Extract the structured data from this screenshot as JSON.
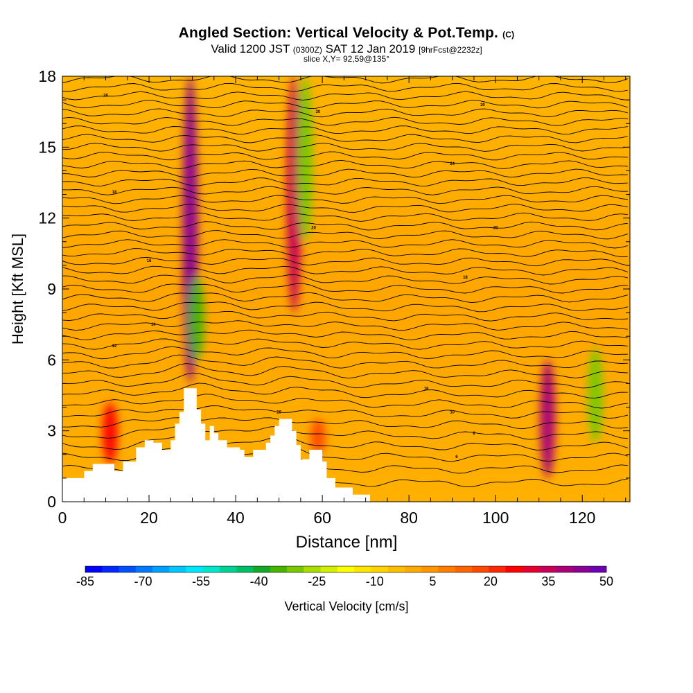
{
  "header": {
    "title_main": "Angled Section: Vertical Velocity & Pot.Temp.",
    "title_unit": "(C)",
    "valid_prefix": "Valid 1200 JST",
    "valid_utc": "(0300Z)",
    "valid_date": "SAT 12 Jan 2019",
    "valid_fcst": "[9hrFcst@2232z]",
    "slice_info": "slice X,Y= 92,59@135°"
  },
  "chart_data": {
    "type": "heatmap",
    "xlabel": "Distance [nm]",
    "ylabel": "Height [Kft MSL]",
    "xlim": [
      0,
      131
    ],
    "ylim": [
      0,
      18
    ],
    "x_ticks": [
      0,
      20,
      40,
      60,
      80,
      100,
      120
    ],
    "y_ticks": [
      0,
      3,
      6,
      9,
      12,
      15,
      18
    ],
    "colorbar": {
      "label": "Vertical Velocity [cm/s]",
      "tick_labels": [
        "-85",
        "-70",
        "-55",
        "-40",
        "-25",
        "-10",
        "5",
        "20",
        "35",
        "50"
      ],
      "colors": [
        "#0000ff",
        "#0028ff",
        "#0050ff",
        "#0078ff",
        "#00a0ff",
        "#00c8ff",
        "#00e6ff",
        "#00e6c8",
        "#00d296",
        "#00be64",
        "#14aa28",
        "#46b400",
        "#78c800",
        "#aade00",
        "#d2f000",
        "#ffff00",
        "#ffe600",
        "#ffd200",
        "#ffbe00",
        "#ffaa00",
        "#ff9600",
        "#ff7d00",
        "#ff6400",
        "#ff4b00",
        "#ff2800",
        "#ff0000",
        "#e6002d",
        "#c8005a",
        "#aa0078",
        "#8c0096",
        "#6e00b4"
      ]
    },
    "velocity_features": [
      {
        "x": 11,
        "z_min": 1.6,
        "z_max": 4.2,
        "vv": 28
      },
      {
        "x": 29.5,
        "z_min": 5,
        "z_max": 18,
        "vv": 45
      },
      {
        "x": 31,
        "z_min": 6,
        "z_max": 9.5,
        "vv": -35
      },
      {
        "x": 53.5,
        "z_min": 8,
        "z_max": 18,
        "vv": 35
      },
      {
        "x": 56,
        "z_min": 11,
        "z_max": 18,
        "vv": -30
      },
      {
        "x": 59,
        "z_min": 2,
        "z_max": 3.5,
        "vv": 18
      },
      {
        "x": 112,
        "z_min": 1,
        "z_max": 6,
        "vv": 40
      },
      {
        "x": 123,
        "z_min": 2.5,
        "z_max": 6.5,
        "vv": -30
      }
    ],
    "terrain": [
      [
        0,
        1
      ],
      [
        5,
        1
      ],
      [
        5,
        1.3
      ],
      [
        7,
        1.3
      ],
      [
        7,
        1.6
      ],
      [
        12,
        1.6
      ],
      [
        12,
        1.3
      ],
      [
        14,
        1.3
      ],
      [
        14,
        1.7
      ],
      [
        17,
        1.7
      ],
      [
        17,
        2.3
      ],
      [
        19,
        2.3
      ],
      [
        19,
        2.6
      ],
      [
        21,
        2.6
      ],
      [
        21,
        2.5
      ],
      [
        23,
        2.5
      ],
      [
        23,
        2.2
      ],
      [
        25,
        2.2
      ],
      [
        25,
        2.6
      ],
      [
        26,
        2.6
      ],
      [
        26,
        3.3
      ],
      [
        27,
        3.3
      ],
      [
        27,
        3.8
      ],
      [
        28,
        3.8
      ],
      [
        28,
        4.8
      ],
      [
        31,
        4.8
      ],
      [
        31,
        3.9
      ],
      [
        32,
        3.9
      ],
      [
        32,
        3.3
      ],
      [
        33,
        3.3
      ],
      [
        33,
        2.6
      ],
      [
        34,
        2.6
      ],
      [
        34,
        3.2
      ],
      [
        35,
        3.2
      ],
      [
        35,
        2.9
      ],
      [
        36,
        2.9
      ],
      [
        36,
        2.6
      ],
      [
        38,
        2.6
      ],
      [
        38,
        2.3
      ],
      [
        41,
        2.3
      ],
      [
        41,
        2.2
      ],
      [
        42,
        2.2
      ],
      [
        42,
        1.9
      ],
      [
        44,
        1.9
      ],
      [
        44,
        2.2
      ],
      [
        47,
        2.2
      ],
      [
        47,
        2.5
      ],
      [
        48,
        2.5
      ],
      [
        48,
        2.8
      ],
      [
        49,
        2.8
      ],
      [
        49,
        3.2
      ],
      [
        50,
        3.2
      ],
      [
        50,
        3.5
      ],
      [
        53,
        3.5
      ],
      [
        53,
        3
      ],
      [
        54,
        3
      ],
      [
        54,
        2.4
      ],
      [
        55,
        2.4
      ],
      [
        55,
        1.8
      ],
      [
        57,
        1.8
      ],
      [
        57,
        2.2
      ],
      [
        60,
        2.2
      ],
      [
        60,
        1.7
      ],
      [
        61,
        1.7
      ],
      [
        61,
        1
      ],
      [
        63,
        1
      ],
      [
        63,
        0.6
      ],
      [
        67,
        0.6
      ],
      [
        67,
        0.3
      ],
      [
        71,
        0.3
      ],
      [
        71,
        0
      ]
    ],
    "isentropes": {
      "count": 46,
      "z_bottom": 0.8,
      "z_top": 18.6,
      "labels": [
        {
          "text": "26",
          "x": 10,
          "z": 17.2
        },
        {
          "text": "18",
          "x": 12,
          "z": 13.1
        },
        {
          "text": "16",
          "x": 20,
          "z": 10.2
        },
        {
          "text": "14",
          "x": 21,
          "z": 7.5
        },
        {
          "text": "12",
          "x": 12,
          "z": 6.6
        },
        {
          "text": "30",
          "x": 59,
          "z": 16.5
        },
        {
          "text": "20",
          "x": 58,
          "z": 11.6
        },
        {
          "text": "10",
          "x": 50,
          "z": 3.8
        },
        {
          "text": "30",
          "x": 97,
          "z": 16.8
        },
        {
          "text": "24",
          "x": 90,
          "z": 14.3
        },
        {
          "text": "20",
          "x": 100,
          "z": 11.6
        },
        {
          "text": "18",
          "x": 93,
          "z": 9.5
        },
        {
          "text": "16",
          "x": 84,
          "z": 4.8
        },
        {
          "text": "10",
          "x": 90,
          "z": 3.8
        },
        {
          "text": "8",
          "x": 95,
          "z": 2.9
        },
        {
          "text": "6",
          "x": 91,
          "z": 1.9
        }
      ]
    }
  }
}
